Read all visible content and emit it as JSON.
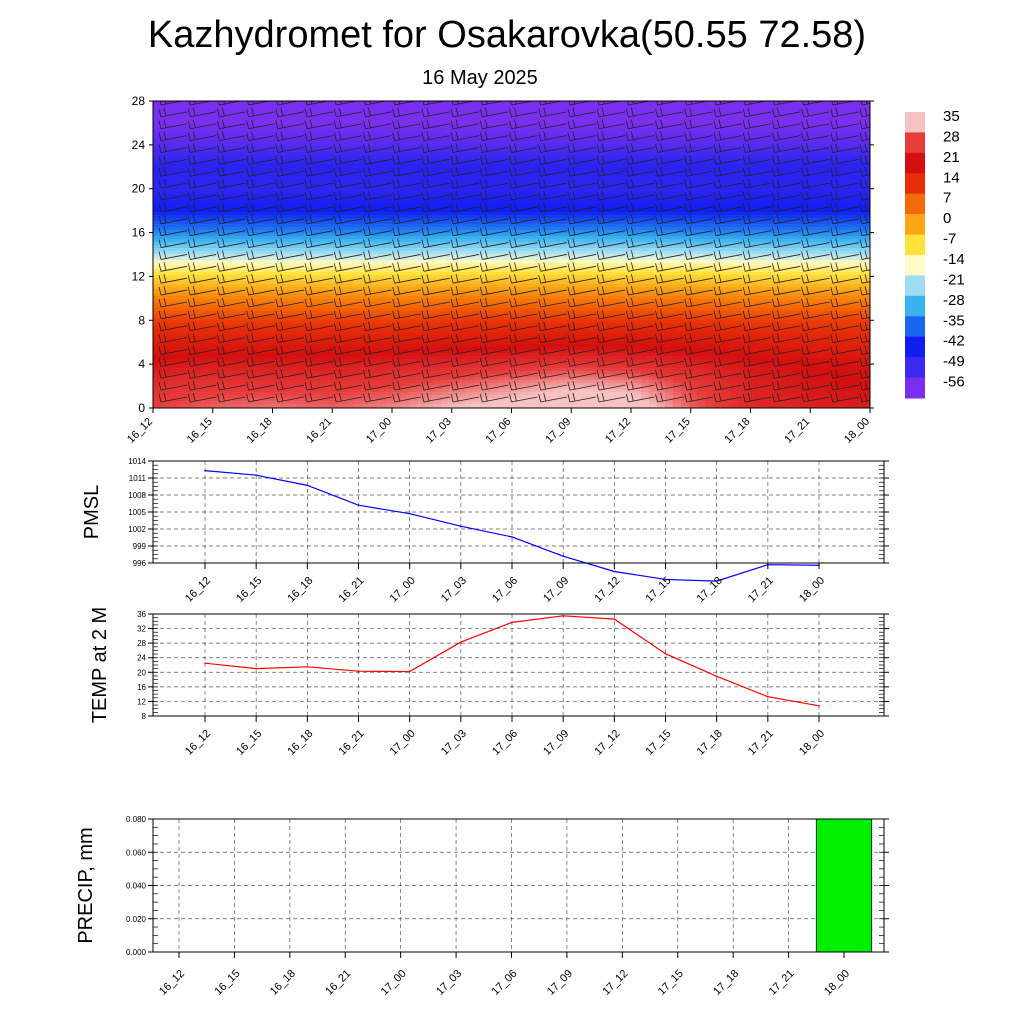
{
  "title": "Kazhydromet for Osakarovka(50.55 72.58)",
  "subtitle": "16 May 2025",
  "time_labels": [
    "16_12",
    "16_15",
    "16_18",
    "16_21",
    "17_00",
    "17_03",
    "17_06",
    "17_09",
    "17_12",
    "17_15",
    "17_18",
    "17_21",
    "18_00"
  ],
  "chart_data": [
    {
      "type": "heatmap",
      "name": "temperature-cross-section",
      "x": [
        "16_12",
        "16_15",
        "16_18",
        "16_21",
        "17_00",
        "17_03",
        "17_06",
        "17_09",
        "17_12",
        "17_15",
        "17_18",
        "17_21",
        "18_00"
      ],
      "y_ticks": [
        0,
        4,
        8,
        12,
        16,
        20,
        24,
        28
      ],
      "ylim": [
        0,
        28
      ],
      "colorbar": {
        "labels": [
          "35",
          "28",
          "21",
          "14",
          "7",
          "0",
          "-7",
          "-14",
          "-21",
          "-28",
          "-35",
          "-42",
          "-49",
          "-56"
        ],
        "colors": [
          "#f6c2c2",
          "#e83c3c",
          "#d40f0f",
          "#e82e08",
          "#f36a08",
          "#fba617",
          "#ffe23a",
          "#fffbc8",
          "#9fdcf3",
          "#38b3f0",
          "#1a64f2",
          "#0f1df2",
          "#3c28f0",
          "#7a2ef0"
        ]
      },
      "levels": [
        {
          "y": 0,
          "values": [
            28,
            30,
            31,
            30,
            32,
            35,
            37,
            40,
            38,
            30,
            25,
            24,
            23
          ]
        },
        {
          "y": 2,
          "values": [
            26,
            27,
            27,
            27,
            28,
            30,
            32,
            34,
            33,
            28,
            24,
            22,
            21
          ]
        },
        {
          "y": 4,
          "values": [
            22,
            23,
            23,
            23,
            24,
            25,
            26,
            27,
            26,
            24,
            22,
            21,
            20
          ]
        },
        {
          "y": 6,
          "values": [
            18,
            18,
            18,
            18,
            18,
            19,
            19,
            20,
            20,
            19,
            18,
            17,
            16
          ]
        },
        {
          "y": 8,
          "values": [
            12,
            12,
            12,
            12,
            12,
            13,
            13,
            13,
            13,
            13,
            12,
            12,
            12
          ]
        },
        {
          "y": 10,
          "values": [
            4,
            4,
            4,
            4,
            4,
            5,
            5,
            5,
            5,
            5,
            4,
            4,
            4
          ]
        },
        {
          "y": 12,
          "values": [
            -6,
            -6,
            -6,
            -6,
            -6,
            -5,
            -5,
            -5,
            -5,
            -5,
            -6,
            -6,
            -6
          ]
        },
        {
          "y": 13,
          "values": [
            -12,
            -12,
            -12,
            -12,
            -12,
            -11,
            -11,
            -11,
            -11,
            -11,
            -12,
            -12,
            -12
          ]
        },
        {
          "y": 14,
          "values": [
            -20,
            -20,
            -20,
            -20,
            -20,
            -19,
            -19,
            -19,
            -19,
            -19,
            -20,
            -20,
            -20
          ]
        },
        {
          "y": 16,
          "values": [
            -32,
            -32,
            -32,
            -32,
            -32,
            -31,
            -31,
            -31,
            -31,
            -32,
            -32,
            -32,
            -32
          ]
        },
        {
          "y": 18,
          "values": [
            -42,
            -42,
            -42,
            -42,
            -42,
            -42,
            -42,
            -42,
            -42,
            -42,
            -42,
            -42,
            -42
          ]
        },
        {
          "y": 20,
          "values": [
            -47,
            -47,
            -47,
            -47,
            -47,
            -46,
            -46,
            -47,
            -47,
            -47,
            -46,
            -46,
            -47
          ]
        },
        {
          "y": 22,
          "values": [
            -46,
            -46,
            -46,
            -46,
            -46,
            -46,
            -46,
            -46,
            -46,
            -46,
            -46,
            -46,
            -46
          ]
        },
        {
          "y": 24,
          "values": [
            -52,
            -52,
            -52,
            -52,
            -52,
            -52,
            -52,
            -52,
            -52,
            -52,
            -52,
            -52,
            -52
          ]
        },
        {
          "y": 26,
          "values": [
            -56,
            -56,
            -56,
            -56,
            -56,
            -56,
            -56,
            -56,
            -56,
            -56,
            -56,
            -56,
            -56
          ]
        },
        {
          "y": 28,
          "values": [
            -58,
            -58,
            -58,
            -58,
            -58,
            -58,
            -58,
            -58,
            -58,
            -58,
            -58,
            -58,
            -58
          ]
        }
      ]
    },
    {
      "type": "line",
      "name": "pmsl",
      "ylabel": "PMSL",
      "x": [
        "16_12",
        "16_15",
        "16_18",
        "16_21",
        "17_00",
        "17_03",
        "17_06",
        "17_09",
        "17_12",
        "17_15",
        "17_18",
        "17_21",
        "18_00"
      ],
      "values": [
        1012.3,
        1011.5,
        1009.7,
        1006.2,
        1004.7,
        1002.5,
        1000.6,
        997.2,
        994.5,
        993.1,
        992.8,
        995.7,
        995.6
      ],
      "y_ticks": [
        "996",
        "999",
        "1002",
        "1005",
        "1008",
        "1011",
        "1014"
      ],
      "ylim": [
        996,
        1014
      ],
      "color": "#0000ff",
      "grid": true
    },
    {
      "type": "line",
      "name": "temp-2m",
      "ylabel": "TEMP at 2 M",
      "x": [
        "16_12",
        "16_15",
        "16_18",
        "16_21",
        "17_00",
        "17_03",
        "17_06",
        "17_09",
        "17_12",
        "17_15",
        "17_18",
        "17_21",
        "18_00"
      ],
      "values": [
        22.5,
        21,
        21.5,
        20.3,
        20.2,
        28.3,
        33.7,
        35.5,
        34.6,
        25.1,
        18.9,
        13.3,
        10.8
      ],
      "y_ticks": [
        "8",
        "12",
        "16",
        "20",
        "24",
        "28",
        "32",
        "36"
      ],
      "ylim": [
        8,
        36
      ],
      "color": "#ff0000",
      "grid": true
    },
    {
      "type": "bar",
      "name": "precip",
      "ylabel": "PRECIP, mm",
      "categories": [
        "16_12",
        "16_15",
        "16_18",
        "16_21",
        "17_00",
        "17_03",
        "17_06",
        "17_09",
        "17_12",
        "17_15",
        "17_18",
        "17_21",
        "18_00"
      ],
      "values": [
        0,
        0,
        0,
        0,
        0,
        0,
        0,
        0,
        0,
        0,
        0,
        0,
        0.08
      ],
      "y_ticks": [
        "0.000",
        "0.020",
        "0.040",
        "0.060",
        "0.080"
      ],
      "ylim": [
        0,
        0.08
      ],
      "color": "#00ee00",
      "grid": true
    }
  ]
}
